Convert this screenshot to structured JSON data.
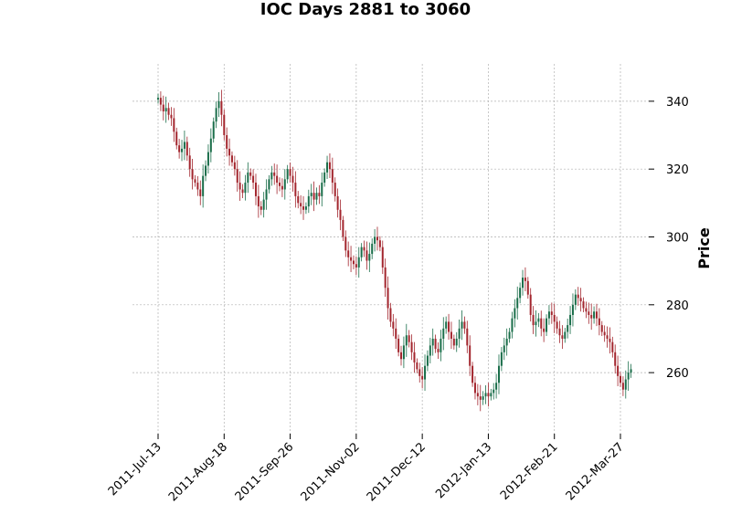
{
  "chart_data": {
    "type": "candlestick",
    "title": "IOC Days 2881 to 3060",
    "ylabel": "Price",
    "xlabel": "",
    "ylim": [
      242,
      351
    ],
    "y_ticks": [
      260,
      280,
      300,
      320,
      340
    ],
    "x_tick_labels": [
      "2011-Jul-13",
      "2011-Aug-18",
      "2011-Sep-26",
      "2011-Nov-02",
      "2011-Dec-12",
      "2012-Jan-13",
      "2012-Feb-21",
      "2012-Mar-27"
    ],
    "x_tick_index": [
      0,
      25,
      50,
      75,
      100,
      125,
      150,
      175
    ],
    "grid": true,
    "colors": {
      "up": "#1a6e4a",
      "down": "#a3262e",
      "grid": "#b0b0b0"
    },
    "closes": [
      341,
      339,
      337,
      338,
      336,
      335,
      331,
      327,
      325,
      326,
      328,
      324,
      320,
      317,
      316,
      314,
      312,
      318,
      321,
      325,
      329,
      334,
      338,
      340,
      336,
      330,
      326,
      324,
      322,
      320,
      316,
      314,
      313,
      316,
      319,
      318,
      316,
      312,
      309,
      308,
      311,
      314,
      317,
      319,
      318,
      316,
      315,
      314,
      317,
      320,
      318,
      316,
      312,
      310,
      309,
      308,
      309,
      312,
      313,
      311,
      313,
      312,
      316,
      319,
      322,
      320,
      316,
      312,
      308,
      305,
      300,
      296,
      294,
      293,
      292,
      291,
      294,
      297,
      296,
      293,
      295,
      298,
      300,
      299,
      297,
      291,
      285,
      279,
      275,
      273,
      270,
      266,
      264,
      268,
      271,
      269,
      266,
      263,
      261,
      259,
      258,
      262,
      265,
      268,
      270,
      267,
      266,
      270,
      273,
      275,
      272,
      270,
      268,
      270,
      273,
      275,
      273,
      268,
      262,
      257,
      254,
      253,
      252,
      253,
      254,
      253,
      254,
      255,
      257,
      262,
      266,
      268,
      270,
      272,
      276,
      279,
      282,
      285,
      288,
      287,
      283,
      277,
      274,
      275,
      276,
      273,
      272,
      276,
      278,
      277,
      275,
      273,
      271,
      270,
      272,
      274,
      277,
      280,
      283,
      282,
      281,
      279,
      278,
      277,
      276,
      278,
      276,
      274,
      272,
      271,
      270,
      269,
      266,
      262,
      259,
      257,
      255,
      258,
      260,
      261
    ]
  }
}
